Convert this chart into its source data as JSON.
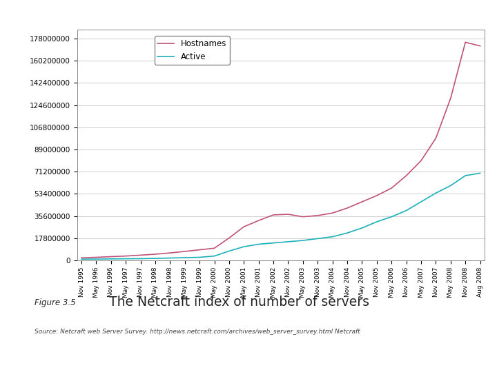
{
  "title": "The Netcraft index of number of servers",
  "figure_label": "Figure 3.5",
  "source_text": "Source: Netcraft web Server Survey. http://news.netcraft.com/archives/web_server_survey.html Netcraft",
  "hostname_color": "#c0527a",
  "active_color": "#1ab0b8",
  "background_color": "#ffffff",
  "plot_bg_color": "#ffffff",
  "yticks": [
    0,
    17800000,
    35600000,
    53400000,
    71200000,
    89000000,
    106800000,
    124600000,
    142400000,
    160200000,
    178000000
  ],
  "xtick_labels": [
    "Nov 1995",
    "May 1996",
    "Nov 1996",
    "May 1997",
    "Nov 1997",
    "May 1998",
    "Nov 1998",
    "May 1999",
    "Nov 1999",
    "May 2000",
    "Nov 2000",
    "May 2001",
    "Nov 2001",
    "May 2002",
    "Nov 2002",
    "May 2003",
    "Nov 2003",
    "May 2004",
    "Nov 2004",
    "May 2005",
    "Nov 2005",
    "May 2006",
    "Nov 2006",
    "May 2007",
    "Nov 2007",
    "May 2008",
    "Nov 2008",
    "Aug 2008"
  ],
  "hostnames_data": [
    2000000,
    2500000,
    3000000,
    3500000,
    4200000,
    5000000,
    6000000,
    7200000,
    8500000,
    9800000,
    18000000,
    27000000,
    32000000,
    36500000,
    37000000,
    35000000,
    36000000,
    38000000,
    42000000,
    47000000,
    52000000,
    58000000,
    68000000,
    80000000,
    98000000,
    130000000,
    175000000,
    172000000
  ],
  "active_data": [
    1000000,
    1100000,
    1200000,
    1300000,
    1400000,
    1600000,
    1900000,
    2200000,
    2500000,
    3500000,
    7500000,
    11000000,
    13000000,
    14000000,
    15000000,
    16000000,
    17500000,
    19000000,
    22000000,
    26000000,
    31000000,
    35000000,
    40000000,
    47000000,
    54000000,
    60000000,
    68000000,
    70000000
  ]
}
